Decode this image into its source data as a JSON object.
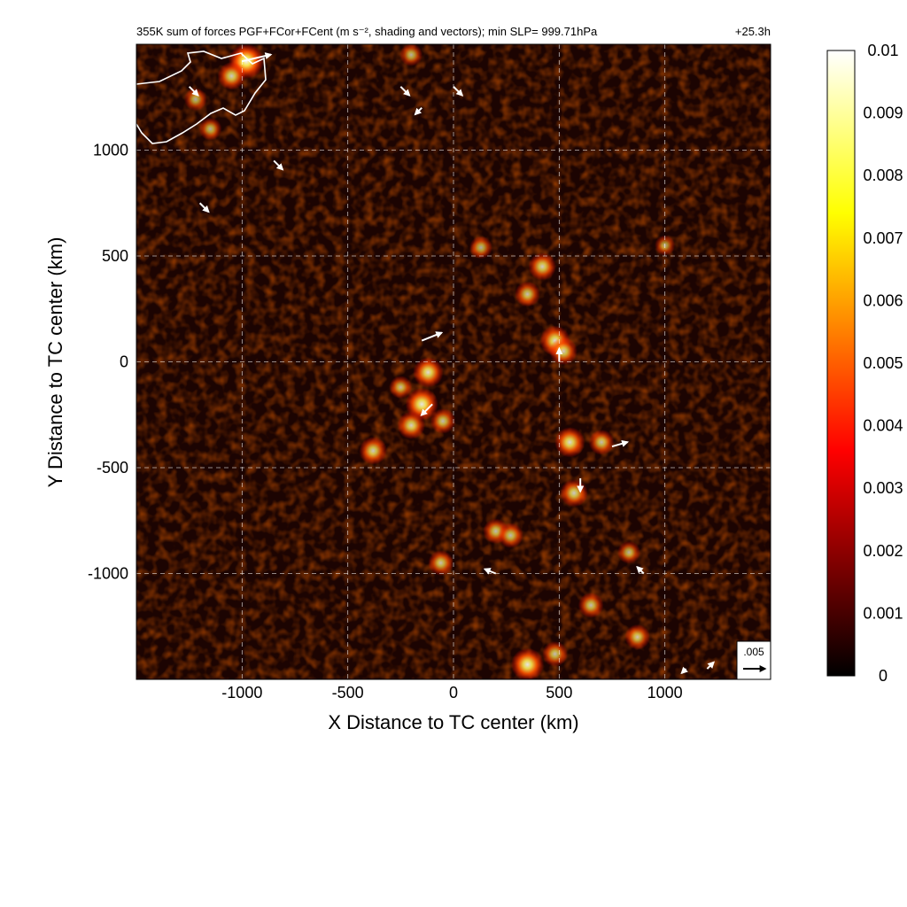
{
  "chart_data": {
    "type": "heatmap",
    "title": "355K sum of forces PGF+FCor+FCent (m s⁻², shading and vectors); min SLP= 999.71hPa",
    "time_label": "+25.3h",
    "xlabel": "X Distance to TC center (km)",
    "ylabel": "Y Distance to TC center (km)",
    "xlim": [
      -1500,
      1500
    ],
    "ylim": [
      -1500,
      1500
    ],
    "xticks": [
      -1000,
      -500,
      0,
      500,
      1000
    ],
    "yticks": [
      -1000,
      -500,
      0,
      500,
      1000
    ],
    "xtick_labels": [
      "-1000",
      "-500",
      "0",
      "500",
      "1000"
    ],
    "ytick_labels": [
      "-1000",
      "-500",
      "0",
      "500",
      "1000"
    ],
    "grid": true,
    "colorbar": {
      "min": 0,
      "max": 0.01,
      "colormap": "black-red-yellow-white (hot)",
      "tick_values": [
        0,
        0.001,
        0.002,
        0.003,
        0.004,
        0.005,
        0.006,
        0.007,
        0.008,
        0.009,
        0.01
      ],
      "tick_labels": [
        "0",
        "0.001",
        "0.002",
        "0.003",
        "0.004",
        "0.005",
        "0.006",
        "0.007",
        "0.008",
        "0.009",
        "0.01"
      ]
    },
    "reference_vector": {
      "label": ".005",
      "value": 0.005
    },
    "hotspots": [
      {
        "x": -150,
        "y": -200,
        "v": 0.009
      },
      {
        "x": -120,
        "y": -50,
        "v": 0.008
      },
      {
        "x": -200,
        "y": -300,
        "v": 0.007
      },
      {
        "x": -380,
        "y": -420,
        "v": 0.007
      },
      {
        "x": -50,
        "y": -280,
        "v": 0.006
      },
      {
        "x": 420,
        "y": 450,
        "v": 0.007
      },
      {
        "x": 350,
        "y": 320,
        "v": 0.006
      },
      {
        "x": 480,
        "y": 100,
        "v": 0.008
      },
      {
        "x": 520,
        "y": 50,
        "v": 0.007
      },
      {
        "x": 550,
        "y": -380,
        "v": 0.008
      },
      {
        "x": 700,
        "y": -380,
        "v": 0.006
      },
      {
        "x": 570,
        "y": -620,
        "v": 0.007
      },
      {
        "x": 200,
        "y": -800,
        "v": 0.006
      },
      {
        "x": 270,
        "y": -820,
        "v": 0.006
      },
      {
        "x": 650,
        "y": -1150,
        "v": 0.006
      },
      {
        "x": 830,
        "y": -900,
        "v": 0.005
      },
      {
        "x": 350,
        "y": -1430,
        "v": 0.009
      },
      {
        "x": 480,
        "y": -1380,
        "v": 0.006
      },
      {
        "x": -60,
        "y": -950,
        "v": 0.006
      },
      {
        "x": 130,
        "y": 540,
        "v": 0.005
      },
      {
        "x": -980,
        "y": 1420,
        "v": 0.01
      },
      {
        "x": -1050,
        "y": 1350,
        "v": 0.007
      },
      {
        "x": -1150,
        "y": 1100,
        "v": 0.005
      },
      {
        "x": -1220,
        "y": 1240,
        "v": 0.005
      },
      {
        "x": -200,
        "y": 1450,
        "v": 0.005
      },
      {
        "x": -250,
        "y": -120,
        "v": 0.005
      },
      {
        "x": 1000,
        "y": 550,
        "v": 0.004
      },
      {
        "x": 870,
        "y": -1300,
        "v": 0.006
      }
    ],
    "vectors": [
      {
        "x": -1000,
        "y": 1420,
        "u": 0.0065,
        "v": 0.0015
      },
      {
        "x": -1250,
        "y": 1300,
        "u": 0.002,
        "v": -0.002
      },
      {
        "x": -850,
        "y": 950,
        "u": 0.002,
        "v": -0.002
      },
      {
        "x": -1200,
        "y": 750,
        "u": 0.002,
        "v": -0.002
      },
      {
        "x": -150,
        "y": 100,
        "u": 0.0045,
        "v": 0.0018
      },
      {
        "x": -100,
        "y": -200,
        "u": -0.0025,
        "v": -0.0025
      },
      {
        "x": 500,
        "y": 0,
        "u": 0,
        "v": 0.003
      },
      {
        "x": 750,
        "y": -400,
        "u": 0.0035,
        "v": 0.001
      },
      {
        "x": 600,
        "y": -550,
        "u": 0,
        "v": -0.003
      },
      {
        "x": 200,
        "y": -1000,
        "u": -0.0025,
        "v": 0.001
      },
      {
        "x": 900,
        "y": -1000,
        "u": -0.0015,
        "v": 0.0015
      },
      {
        "x": -250,
        "y": 1300,
        "u": 0.002,
        "v": -0.002
      },
      {
        "x": 0,
        "y": 1300,
        "u": 0.002,
        "v": -0.002
      },
      {
        "x": -150,
        "y": 1200,
        "u": -0.0015,
        "v": -0.0015
      },
      {
        "x": 1100,
        "y": -1450,
        "u": -0.001,
        "v": -0.001
      },
      {
        "x": 1200,
        "y": -1450,
        "u": 0.0015,
        "v": 0.0015
      }
    ]
  }
}
